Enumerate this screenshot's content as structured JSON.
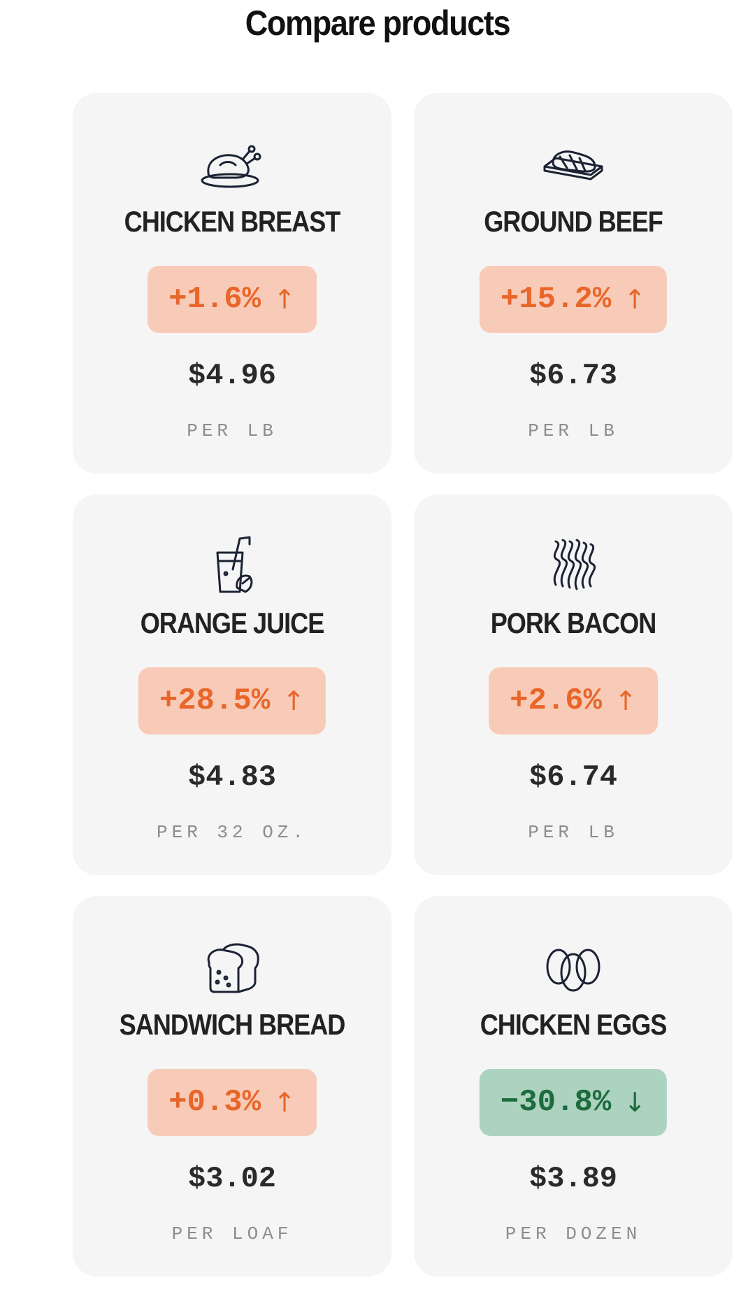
{
  "page": {
    "title": "Compare products"
  },
  "products": [
    {
      "name": "CHICKEN BREAST",
      "change": "+1.6%",
      "arrow": "↑",
      "direction": "up",
      "price": "$4.96",
      "unit": "PER LB",
      "icon": "roast-chicken-icon"
    },
    {
      "name": "GROUND BEEF",
      "change": "+15.2%",
      "arrow": "↑",
      "direction": "up",
      "price": "$6.73",
      "unit": "PER LB",
      "icon": "ground-beef-package-icon"
    },
    {
      "name": "ORANGE JUICE",
      "change": "+28.5%",
      "arrow": "↑",
      "direction": "up",
      "price": "$4.83",
      "unit": "PER 32 OZ.",
      "icon": "juice-glass-icon"
    },
    {
      "name": "PORK BACON",
      "change": "+2.6%",
      "arrow": "↑",
      "direction": "up",
      "price": "$6.74",
      "unit": "PER LB",
      "icon": "bacon-strips-icon"
    },
    {
      "name": "SANDWICH BREAD",
      "change": "+0.3%",
      "arrow": "↑",
      "direction": "up",
      "price": "$3.02",
      "unit": "PER LOAF",
      "icon": "bread-loaf-icon"
    },
    {
      "name": "CHICKEN EGGS",
      "change": "−30.8%",
      "arrow": "↓",
      "direction": "down",
      "price": "$3.89",
      "unit": "PER DOZEN",
      "icon": "eggs-icon"
    }
  ],
  "colors": {
    "increase_bg": "#f8cbb8",
    "increase_text": "#e8662a",
    "decrease_bg": "#acd3bf",
    "decrease_text": "#1e6b3d",
    "card_bg": "#f5f5f5"
  }
}
